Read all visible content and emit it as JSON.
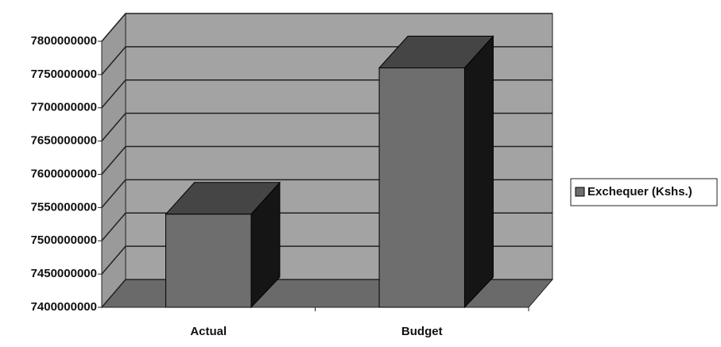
{
  "chart_data": {
    "type": "bar3d",
    "categories": [
      "Actual",
      "Budget"
    ],
    "series": [
      {
        "name": "Exchequer (Kshs.)",
        "color": "#6e6e6e",
        "values": [
          7540000000,
          7760000000
        ]
      }
    ],
    "ylim": [
      7400000000,
      7800000000
    ],
    "yticks": [
      7400000000,
      7450000000,
      7500000000,
      7550000000,
      7600000000,
      7650000000,
      7700000000,
      7750000000,
      7800000000
    ],
    "grid": true,
    "legend": "right"
  }
}
